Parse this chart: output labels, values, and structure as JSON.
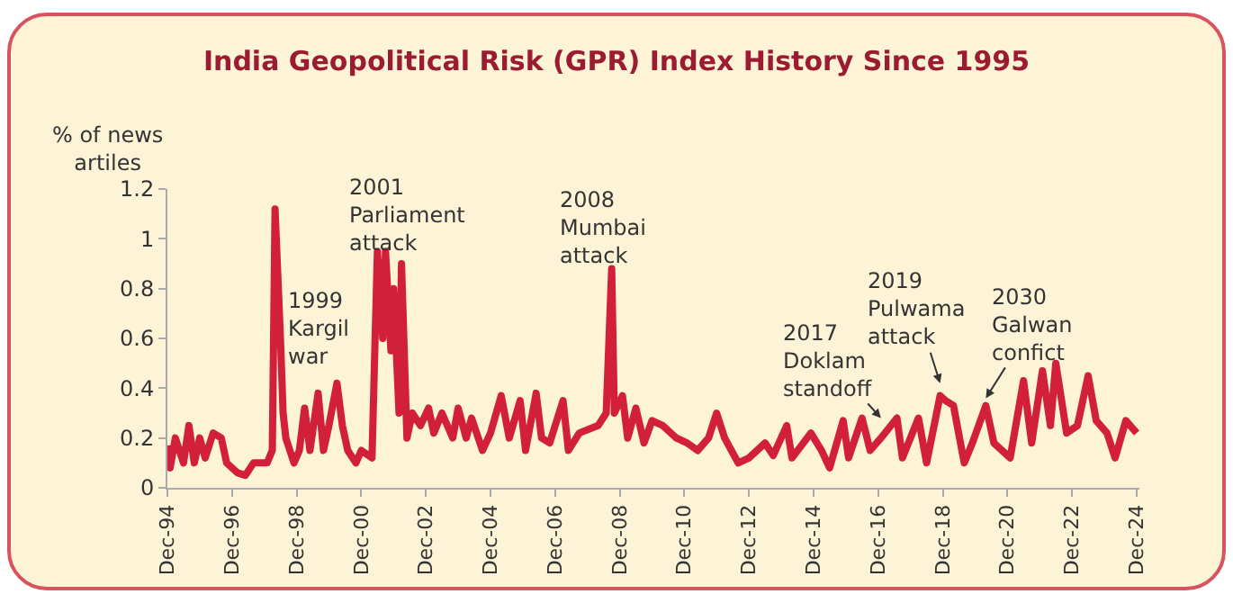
{
  "chart_data": {
    "type": "line",
    "title": "India Geopolitical Risk (GPR) Index History Since 1995",
    "ylabel": "% of news\nartiles",
    "x": [
      "1994-12",
      "1995-01",
      "1995-03",
      "1995-06",
      "1995-08",
      "1995-10",
      "1995-12",
      "1996-02",
      "1996-05",
      "1996-08",
      "1996-10",
      "1997-02",
      "1997-05",
      "1997-08",
      "1998-01",
      "1998-03",
      "1998-04",
      "1998-06",
      "1998-07",
      "1998-08",
      "1998-11",
      "1999-01",
      "1999-03",
      "1999-05",
      "1999-08",
      "1999-10",
      "1999-12",
      "2000-03",
      "2000-05",
      "2000-07",
      "2000-10",
      "2000-12",
      "2001-04",
      "2001-06",
      "2001-08",
      "2001-09",
      "2001-11",
      "2001-12",
      "2002-02",
      "2002-03",
      "2002-05",
      "2002-07",
      "2002-10",
      "2003-01",
      "2003-03",
      "2003-06",
      "2003-10",
      "2003-12",
      "2004-03",
      "2004-05",
      "2004-09",
      "2004-12",
      "2005-04",
      "2005-07",
      "2005-11",
      "2006-01",
      "2006-05",
      "2006-07",
      "2006-10",
      "2007-03",
      "2007-05",
      "2007-09",
      "2008-04",
      "2008-07",
      "2008-09",
      "2008-10",
      "2009-01",
      "2009-03",
      "2009-06",
      "2009-09",
      "2009-12",
      "2010-04",
      "2010-09",
      "2011-01",
      "2011-05",
      "2011-09",
      "2011-12",
      "2012-03",
      "2012-08",
      "2012-12",
      "2013-06",
      "2013-09",
      "2014-02",
      "2014-04",
      "2014-11",
      "2015-03",
      "2015-06",
      "2015-11",
      "2016-01",
      "2016-06",
      "2016-09",
      "2017-01",
      "2017-07",
      "2017-09",
      "2018-03",
      "2018-06",
      "2018-11",
      "2019-01",
      "2019-04",
      "2019-08",
      "2019-11",
      "2020-04",
      "2020-07",
      "2021-01",
      "2021-06",
      "2021-09",
      "2022-01",
      "2022-04",
      "2022-06",
      "2022-10",
      "2023-02",
      "2023-06",
      "2023-09",
      "2024-01",
      "2024-04",
      "2024-08",
      "2024-12"
    ],
    "series": [
      {
        "color": "#d21f3c",
        "values": [
          0.17,
          0.08,
          0.2,
          0.1,
          0.25,
          0.1,
          0.2,
          0.12,
          0.22,
          0.2,
          0.1,
          0.06,
          0.05,
          0.1,
          0.1,
          0.15,
          1.12,
          0.6,
          0.3,
          0.2,
          0.1,
          0.15,
          0.32,
          0.15,
          0.38,
          0.15,
          0.25,
          0.42,
          0.25,
          0.15,
          0.1,
          0.15,
          0.12,
          0.95,
          0.6,
          0.95,
          0.55,
          0.8,
          0.3,
          0.9,
          0.2,
          0.3,
          0.25,
          0.32,
          0.22,
          0.3,
          0.2,
          0.32,
          0.2,
          0.28,
          0.15,
          0.22,
          0.37,
          0.2,
          0.35,
          0.15,
          0.38,
          0.2,
          0.18,
          0.35,
          0.15,
          0.22,
          0.25,
          0.3,
          0.88,
          0.3,
          0.37,
          0.2,
          0.32,
          0.18,
          0.27,
          0.25,
          0.2,
          0.18,
          0.15,
          0.2,
          0.3,
          0.2,
          0.1,
          0.12,
          0.18,
          0.13,
          0.25,
          0.12,
          0.22,
          0.15,
          0.08,
          0.27,
          0.12,
          0.28,
          0.15,
          0.2,
          0.28,
          0.12,
          0.28,
          0.1,
          0.37,
          0.35,
          0.33,
          0.1,
          0.18,
          0.33,
          0.18,
          0.12,
          0.43,
          0.18,
          0.47,
          0.25,
          0.5,
          0.22,
          0.25,
          0.45,
          0.27,
          0.22,
          0.12,
          0.27,
          0.22
        ]
      }
    ],
    "xlim": [
      "1994-12",
      "2025-01"
    ],
    "xticks": [
      {
        "value": "1994-12",
        "label": "Dec-94"
      },
      {
        "value": "1996-12",
        "label": "Dec-96"
      },
      {
        "value": "1998-12",
        "label": "Dec-98"
      },
      {
        "value": "2000-12",
        "label": "Dec-00"
      },
      {
        "value": "2002-12",
        "label": "Dec-02"
      },
      {
        "value": "2004-12",
        "label": "Dec-04"
      },
      {
        "value": "2006-12",
        "label": "Dec-06"
      },
      {
        "value": "2008-12",
        "label": "Dec-08"
      },
      {
        "value": "2010-12",
        "label": "Dec-10"
      },
      {
        "value": "2012-12",
        "label": "Dec-12"
      },
      {
        "value": "2014-12",
        "label": "Dec-14"
      },
      {
        "value": "2016-12",
        "label": "Dec-16"
      },
      {
        "value": "2018-12",
        "label": "Dec-18"
      },
      {
        "value": "2020-12",
        "label": "Dec-20"
      },
      {
        "value": "2022-12",
        "label": "Dec-22"
      },
      {
        "value": "2024-12",
        "label": "Dec-24"
      }
    ],
    "ylim": [
      0,
      1.2
    ],
    "yticks": [
      0,
      0.2,
      0.4,
      0.6,
      0.8,
      1,
      1.2
    ],
    "annotations": [
      {
        "text": "1999\nKargil\nwar",
        "x": "2000-03",
        "y": 0.42
      },
      {
        "text": "2001\nParliament\nattack",
        "x": "2001-09",
        "y": 0.95
      },
      {
        "text": "2008\nMumbai\nattack",
        "x": "2008-09",
        "y": 0.88
      },
      {
        "text": "2017\nDoklam\nstandoff",
        "x": "2017-01",
        "y": 0.28
      },
      {
        "text": "2019\nPulwama\nattack",
        "x": "2018-11",
        "y": 0.42
      },
      {
        "text": "2030\nGalwan\nconfict",
        "x": "2020-04",
        "y": 0.36
      }
    ],
    "grid": false,
    "line_style": "solid",
    "marker": "none"
  }
}
